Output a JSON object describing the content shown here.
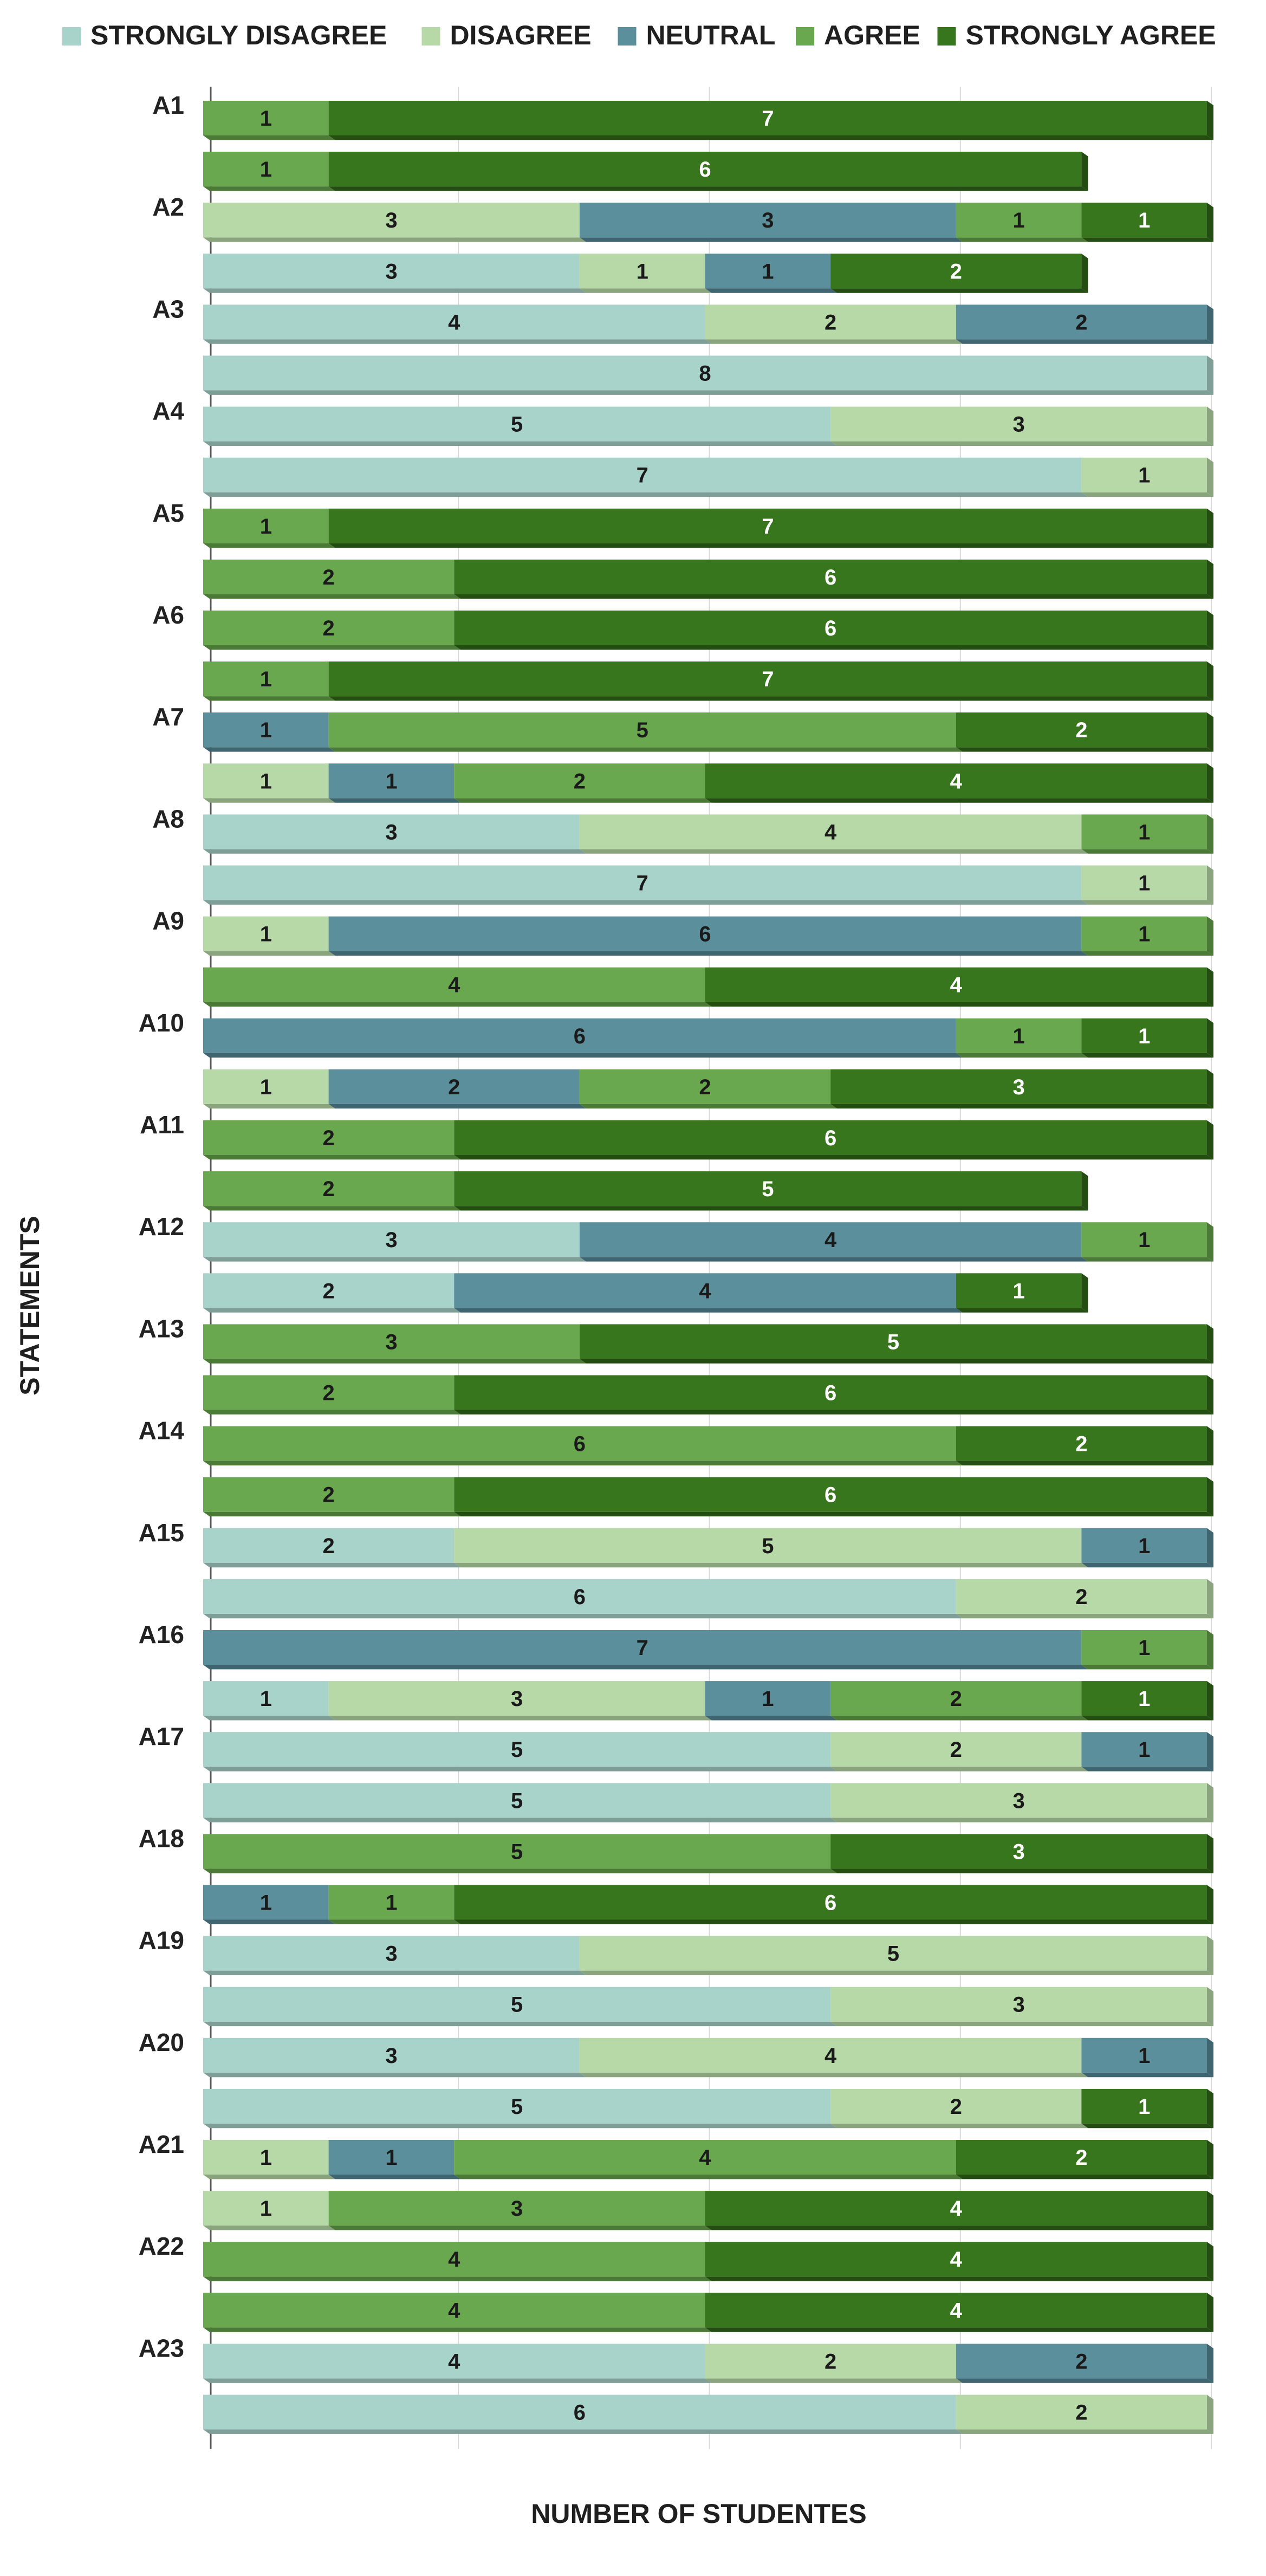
{
  "chart_data": {
    "type": "bar",
    "orientation": "horizontal",
    "stacked": true,
    "title": "",
    "xlabel": "NUMBER OF STUDENTES",
    "ylabel": "STATEMENTS",
    "xlim": [
      0,
      8
    ],
    "grid": true,
    "legend_position": "top",
    "series": [
      {
        "name": "STRONGLY DISAGREE",
        "color": "#a8d3cb",
        "shade": "#7f9e98",
        "label_color": "#1a1a1a"
      },
      {
        "name": "DISAGREE",
        "color": "#b7d9a7",
        "shade": "#8aa57d",
        "label_color": "#1a1a1a"
      },
      {
        "name": "NEUTRAL",
        "color": "#5b8f9b",
        "shade": "#3f6670",
        "label_color": "#1a1a1a"
      },
      {
        "name": "AGREE",
        "color": "#6aa84f",
        "shade": "#4a7a36",
        "label_color": "#1a1a1a"
      },
      {
        "name": "STRONGLY AGREE",
        "color": "#38761d",
        "shade": "#234d11",
        "label_color": "#ffffff"
      }
    ],
    "rows": [
      {
        "label": "A1",
        "values": [
          0,
          0,
          0,
          1,
          7
        ]
      },
      {
        "label": "",
        "values": [
          0,
          0,
          0,
          1,
          6
        ]
      },
      {
        "label": "A2",
        "values": [
          0,
          3,
          3,
          1,
          1
        ]
      },
      {
        "label": "",
        "values": [
          3,
          1,
          1,
          0,
          2
        ]
      },
      {
        "label": "A3",
        "values": [
          4,
          2,
          2,
          0,
          0
        ]
      },
      {
        "label": "",
        "values": [
          8,
          0,
          0,
          0,
          0
        ]
      },
      {
        "label": "A4",
        "values": [
          5,
          3,
          0,
          0,
          0
        ]
      },
      {
        "label": "",
        "values": [
          7,
          1,
          0,
          0,
          0
        ]
      },
      {
        "label": "A5",
        "values": [
          0,
          0,
          0,
          1,
          7
        ]
      },
      {
        "label": "",
        "values": [
          0,
          0,
          0,
          2,
          6
        ]
      },
      {
        "label": "A6",
        "values": [
          0,
          0,
          0,
          2,
          6
        ]
      },
      {
        "label": "",
        "values": [
          0,
          0,
          0,
          1,
          7
        ]
      },
      {
        "label": "A7",
        "values": [
          0,
          0,
          1,
          5,
          2
        ]
      },
      {
        "label": "",
        "values": [
          0,
          1,
          1,
          2,
          4
        ]
      },
      {
        "label": "A8",
        "values": [
          3,
          4,
          0,
          1,
          0
        ]
      },
      {
        "label": "",
        "values": [
          7,
          1,
          0,
          0,
          0
        ]
      },
      {
        "label": "A9",
        "values": [
          0,
          1,
          6,
          1,
          0
        ]
      },
      {
        "label": "",
        "values": [
          0,
          0,
          0,
          4,
          4
        ]
      },
      {
        "label": "A10",
        "values": [
          0,
          0,
          6,
          1,
          1
        ]
      },
      {
        "label": "",
        "values": [
          0,
          1,
          2,
          2,
          3
        ]
      },
      {
        "label": "A11",
        "values": [
          0,
          0,
          0,
          2,
          6
        ]
      },
      {
        "label": "",
        "values": [
          0,
          0,
          0,
          2,
          5
        ]
      },
      {
        "label": "A12",
        "values": [
          3,
          0,
          4,
          1,
          0
        ]
      },
      {
        "label": "",
        "values": [
          2,
          0,
          4,
          0,
          1
        ]
      },
      {
        "label": "A13",
        "values": [
          0,
          0,
          0,
          3,
          5
        ]
      },
      {
        "label": "",
        "values": [
          0,
          0,
          0,
          2,
          6
        ]
      },
      {
        "label": "A14",
        "values": [
          0,
          0,
          0,
          6,
          2
        ]
      },
      {
        "label": "",
        "values": [
          0,
          0,
          0,
          2,
          6
        ]
      },
      {
        "label": "A15",
        "values": [
          2,
          5,
          1,
          0,
          0
        ]
      },
      {
        "label": "",
        "values": [
          6,
          2,
          0,
          0,
          0
        ]
      },
      {
        "label": "A16",
        "values": [
          0,
          0,
          7,
          1,
          0
        ]
      },
      {
        "label": "",
        "values": [
          1,
          3,
          1,
          2,
          1
        ]
      },
      {
        "label": "A17",
        "values": [
          5,
          2,
          1,
          0,
          0
        ]
      },
      {
        "label": "",
        "values": [
          5,
          3,
          0,
          0,
          0
        ]
      },
      {
        "label": "A18",
        "values": [
          0,
          0,
          0,
          5,
          3
        ]
      },
      {
        "label": "",
        "values": [
          0,
          0,
          1,
          1,
          6
        ]
      },
      {
        "label": "A19",
        "values": [
          3,
          5,
          0,
          0,
          0
        ]
      },
      {
        "label": "",
        "values": [
          5,
          3,
          0,
          0,
          0
        ]
      },
      {
        "label": "A20",
        "values": [
          3,
          4,
          1,
          0,
          0
        ]
      },
      {
        "label": "",
        "values": [
          5,
          2,
          0,
          0,
          1
        ]
      },
      {
        "label": "A21",
        "values": [
          0,
          1,
          1,
          4,
          2
        ]
      },
      {
        "label": "",
        "values": [
          0,
          1,
          0,
          3,
          4
        ]
      },
      {
        "label": "A22",
        "values": [
          0,
          0,
          0,
          4,
          4
        ]
      },
      {
        "label": "",
        "values": [
          0,
          0,
          0,
          4,
          4
        ]
      },
      {
        "label": "A23",
        "values": [
          4,
          2,
          2,
          0,
          0
        ]
      },
      {
        "label": "",
        "values": [
          6,
          2,
          0,
          0,
          0
        ]
      }
    ]
  }
}
